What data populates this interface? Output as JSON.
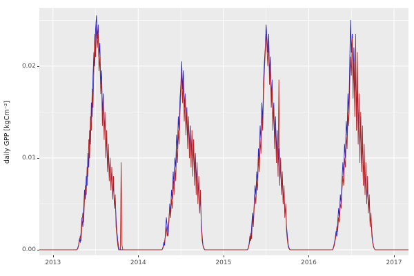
{
  "chart_data": {
    "type": "line",
    "title": "",
    "xlabel": "",
    "ylabel": "daily GPP [kgCm⁻²]",
    "panel_bg": "#ebebeb",
    "grid_color": "#ffffff",
    "x_range": [
      2012.84,
      2017.17
    ],
    "y_range": [
      -0.0006,
      0.0263
    ],
    "x_ticks": [
      2013,
      2014,
      2015,
      2016,
      2017
    ],
    "x_tick_labels": [
      "2013",
      "2014",
      "2015",
      "2016",
      "2017"
    ],
    "x_minor": [
      2013.5,
      2014.5,
      2015.5,
      2016.5
    ],
    "y_ticks": [
      0,
      0.01,
      0.02
    ],
    "y_tick_labels": [
      "0.00",
      "0.01",
      "0.02"
    ],
    "y_minor": [
      0.005,
      0.015,
      0.025
    ],
    "legend": "none",
    "y_scale": 0.001,
    "series": [
      {
        "name": "series-blue",
        "color": "#2121cc",
        "seasons": [
          {
            "start": 2013.28,
            "dx": 0.01,
            "y": [
              0,
              0.2,
              0.5,
              1.2,
              0.8,
              2,
              3.5,
              2.5,
              4.5,
              6.5,
              5.5,
              8,
              7,
              10.5,
              9,
              13,
              11.5,
              16,
              14.5,
              19,
              21.5,
              20,
              24,
              25.5,
              23,
              24.5,
              21,
              22.5,
              18,
              19.5,
              15,
              17,
              13,
              14.5,
              11,
              12.5,
              9,
              10.5,
              8,
              9.5,
              7,
              8.5,
              6,
              7,
              5,
              5.5,
              3.5,
              2,
              1,
              0.3,
              0
            ]
          },
          {
            "start": 2014.28,
            "dx": 0.01,
            "y": [
              0,
              0.3,
              0.8,
              0.5,
              2,
              3.5,
              2.5,
              1.5,
              3,
              5,
              4,
              6.5,
              5.5,
              8.5,
              7,
              10,
              9,
              12.5,
              11,
              14.5,
              13,
              16.5,
              18,
              20.5,
              17.5,
              19.5,
              15.5,
              17,
              13.5,
              15.5,
              12,
              14,
              11,
              13.5,
              10.5,
              12.5,
              9.5,
              11.5,
              8.5,
              10.5,
              7.5,
              9,
              6,
              7.5,
              4.5,
              5.5,
              3,
              1.5,
              0.5,
              0.2,
              0
            ]
          },
          {
            "start": 2015.28,
            "dx": 0.01,
            "y": [
              0,
              0.2,
              0.6,
              1.5,
              1,
              2.5,
              4,
              3,
              5,
              7,
              6,
              8.5,
              7.5,
              11,
              9.5,
              13.5,
              12,
              16,
              14,
              18.5,
              20.5,
              22,
              24.5,
              23,
              21.5,
              23.5,
              19,
              21,
              16.5,
              18.5,
              14,
              16,
              12,
              14.5,
              10.5,
              13,
              9,
              11,
              7.5,
              9.5,
              6.5,
              8,
              5,
              6.5,
              4,
              4.5,
              2.5,
              1.5,
              0.5,
              0.2,
              0
            ]
          },
          {
            "start": 2016.28,
            "dx": 0.01,
            "y": [
              0,
              0.3,
              0.7,
              1.2,
              2,
              1.5,
              3,
              4.5,
              3.5,
              6,
              5,
              7.5,
              9.5,
              8,
              11.5,
              10,
              14,
              12.5,
              17,
              15,
              19.5,
              25,
              21.5,
              23.5,
              18,
              22,
              16,
              20,
              14,
              18,
              12.5,
              16.5,
              10.5,
              14.5,
              9,
              12,
              7.5,
              10,
              6.5,
              8.5,
              5.5,
              7,
              4.5,
              5.5,
              3,
              3.5,
              2,
              1,
              0.4,
              0.1,
              0
            ]
          }
        ]
      },
      {
        "name": "series-red",
        "color": "#b22222",
        "seasons": [
          {
            "start": 2013.28,
            "dx": 0.01,
            "y": [
              0,
              0.1,
              0.4,
              1,
              1.5,
              1,
              3,
              4,
              3,
              5.5,
              7,
              6,
              9,
              8,
              12,
              10,
              14.5,
              13,
              17.5,
              15.5,
              20,
              23.5,
              21,
              24.5,
              22,
              23.5,
              19.5,
              21,
              17,
              18.5,
              13.5,
              16.5,
              12,
              15,
              10,
              13,
              8.5,
              11.5,
              7.5,
              10,
              6.5,
              9,
              5.5,
              8,
              4.5,
              6,
              2.5,
              1.5,
              0.5,
              0,
              0,
              0,
              9.5,
              0.5,
              0
            ]
          },
          {
            "start": 2014.28,
            "dx": 0.01,
            "y": [
              0,
              0.2,
              0.5,
              1,
              1.5,
              2.5,
              1.5,
              2,
              3.5,
              4.5,
              3.5,
              5.5,
              4.5,
              7.5,
              6,
              9,
              7.5,
              11,
              9.5,
              13,
              11.5,
              15,
              17,
              19.5,
              16,
              18.5,
              14,
              16.5,
              12.5,
              15,
              11,
              14.5,
              10,
              13.5,
              9,
              13,
              8,
              12,
              7,
              10.5,
              6,
              9.5,
              5,
              8,
              4,
              6.5,
              2.5,
              1,
              0.4,
              0.1,
              0
            ]
          },
          {
            "start": 2015.28,
            "dx": 0.01,
            "y": [
              0,
              0.1,
              0.5,
              1,
              1.8,
              1.2,
              3.5,
              2.5,
              4.5,
              6,
              5,
              7.5,
              6.5,
              10,
              8.5,
              12,
              10.5,
              15,
              13,
              17,
              19.5,
              21.5,
              23.5,
              22,
              20,
              22.5,
              18,
              20,
              15.5,
              17.5,
              13,
              15.5,
              11,
              13.5,
              9.5,
              12.5,
              8,
              18.5,
              7,
              10,
              6,
              8.5,
              5,
              7,
              3.5,
              5,
              2,
              1,
              0.3,
              0.1,
              0
            ]
          },
          {
            "start": 2016.28,
            "dx": 0.01,
            "y": [
              0,
              0.2,
              0.5,
              1,
              1.5,
              2.5,
              2,
              3.5,
              3,
              5,
              4.5,
              6.5,
              8,
              7,
              10,
              9,
              12.5,
              11,
              15,
              13.5,
              17.5,
              21,
              19,
              23,
              16.5,
              20.5,
              14.5,
              23.5,
              13,
              21.5,
              11.5,
              17,
              9.5,
              15,
              8.5,
              13.5,
              7,
              11.5,
              6,
              9.5,
              5,
              8,
              4,
              6,
              2.5,
              4,
              1.5,
              0.8,
              0.3,
              0.1,
              0
            ]
          }
        ]
      }
    ]
  }
}
